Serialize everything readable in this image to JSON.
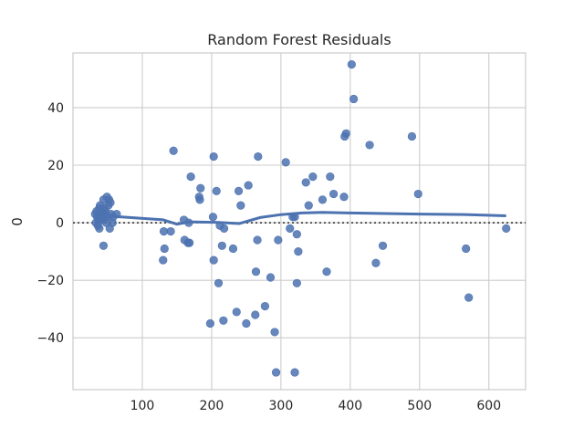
{
  "chart_data": {
    "type": "scatter",
    "title": "Random Forest Residuals",
    "xlabel": "",
    "ylabel": "0",
    "xlim": [
      0,
      653
    ],
    "ylim": [
      -58,
      59
    ],
    "xticks": [
      100,
      200,
      300,
      400,
      500,
      600
    ],
    "yticks": [
      -40,
      -20,
      0,
      20,
      40
    ],
    "ytick_labels": [
      "−40",
      "−20",
      "0",
      "20",
      "40"
    ],
    "grid": true,
    "reference_line_y": 0,
    "colors": {
      "points": "#4c72b0",
      "trend": "#4c72b0",
      "grid": "#cccccc",
      "refline": "#262626"
    },
    "points": [
      [
        32,
        3
      ],
      [
        33,
        0
      ],
      [
        34,
        4
      ],
      [
        35,
        2
      ],
      [
        36,
        -1
      ],
      [
        37,
        1
      ],
      [
        38,
        -2
      ],
      [
        39,
        6
      ],
      [
        40,
        3
      ],
      [
        41,
        4
      ],
      [
        42,
        2
      ],
      [
        43,
        1
      ],
      [
        44,
        8
      ],
      [
        45,
        5
      ],
      [
        46,
        3
      ],
      [
        47,
        4
      ],
      [
        48,
        0
      ],
      [
        49,
        9
      ],
      [
        50,
        2
      ],
      [
        51,
        6
      ],
      [
        52,
        8
      ],
      [
        53,
        -2
      ],
      [
        54,
        7
      ],
      [
        55,
        3
      ],
      [
        57,
        0
      ],
      [
        58,
        2
      ],
      [
        44,
        -8
      ],
      [
        38,
        5
      ],
      [
        40,
        1
      ],
      [
        46,
        2
      ],
      [
        63,
        3
      ],
      [
        130,
        -13
      ],
      [
        131,
        -3
      ],
      [
        132,
        -9
      ],
      [
        141,
        -3
      ],
      [
        145,
        25
      ],
      [
        160,
        1
      ],
      [
        161,
        -6
      ],
      [
        166,
        -7
      ],
      [
        167,
        0
      ],
      [
        168,
        -7
      ],
      [
        170,
        16
      ],
      [
        182,
        9
      ],
      [
        183,
        8
      ],
      [
        184,
        12
      ],
      [
        202,
        2
      ],
      [
        203,
        -13
      ],
      [
        203,
        23
      ],
      [
        207,
        11
      ],
      [
        210,
        -21
      ],
      [
        212,
        -1
      ],
      [
        215,
        -8
      ],
      [
        217,
        -34
      ],
      [
        218,
        -2
      ],
      [
        198,
        -35
      ],
      [
        231,
        -9
      ],
      [
        236,
        -31
      ],
      [
        239,
        11
      ],
      [
        242,
        6
      ],
      [
        250,
        -35
      ],
      [
        253,
        13
      ],
      [
        263,
        -32
      ],
      [
        264,
        -17
      ],
      [
        266,
        -6
      ],
      [
        267,
        23
      ],
      [
        277,
        -29
      ],
      [
        285,
        -19
      ],
      [
        291,
        -38
      ],
      [
        293,
        -52
      ],
      [
        296,
        -6
      ],
      [
        307,
        21
      ],
      [
        313,
        -2
      ],
      [
        317,
        2
      ],
      [
        320,
        2
      ],
      [
        323,
        -21
      ],
      [
        323,
        -4
      ],
      [
        325,
        -10
      ],
      [
        336,
        14
      ],
      [
        340,
        6
      ],
      [
        346,
        16
      ],
      [
        360,
        8
      ],
      [
        366,
        -17
      ],
      [
        371,
        16
      ],
      [
        376,
        10
      ],
      [
        391,
        9
      ],
      [
        392,
        30
      ],
      [
        394,
        31
      ],
      [
        402,
        55
      ],
      [
        405,
        43
      ],
      [
        428,
        27
      ],
      [
        437,
        -14
      ],
      [
        447,
        -8
      ],
      [
        489,
        30
      ],
      [
        498,
        10
      ],
      [
        567,
        -9
      ],
      [
        571,
        -26
      ],
      [
        625,
        -2
      ],
      [
        320,
        -52
      ]
    ],
    "trend": [
      [
        32,
        2.5
      ],
      [
        70,
        2.0
      ],
      [
        130,
        1.0
      ],
      [
        150,
        -0.5
      ],
      [
        168,
        0.3
      ],
      [
        210,
        0.1
      ],
      [
        240,
        -0.3
      ],
      [
        270,
        1.8
      ],
      [
        300,
        2.8
      ],
      [
        330,
        3.4
      ],
      [
        360,
        3.6
      ],
      [
        400,
        3.4
      ],
      [
        450,
        3.2
      ],
      [
        500,
        3.0
      ],
      [
        570,
        2.8
      ],
      [
        625,
        2.4
      ]
    ]
  }
}
